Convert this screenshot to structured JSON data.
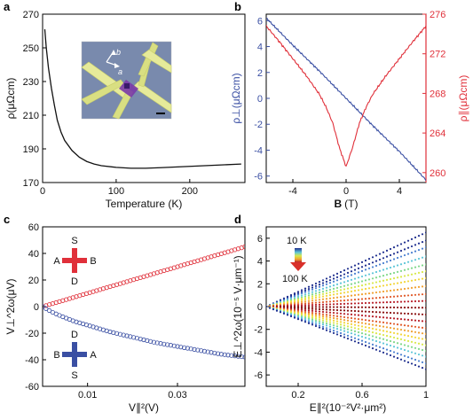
{
  "chart_data": [
    {
      "panel": "a",
      "type": "line",
      "xlabel": "Temperature (K)",
      "ylabel": "ρ(μΩcm)",
      "xlim": [
        0,
        275
      ],
      "ylim": [
        170,
        270
      ],
      "xticks": [
        0,
        100,
        200
      ],
      "yticks": [
        170,
        190,
        210,
        230,
        250,
        270
      ],
      "inset": {
        "type": "device-micrograph",
        "labels": [
          "b",
          "a"
        ]
      },
      "series": [
        {
          "color": "#111111",
          "x": [
            3,
            5,
            8,
            12,
            16,
            20,
            25,
            30,
            40,
            50,
            60,
            70,
            80,
            100,
            120,
            140,
            160,
            180,
            200,
            220,
            240,
            270
          ],
          "y": [
            261,
            250,
            238,
            226,
            216,
            207,
            200,
            195,
            189,
            185,
            182.5,
            181,
            180,
            179,
            178.5,
            178.5,
            178.8,
            179.2,
            179.6,
            180,
            180.4,
            181
          ]
        }
      ]
    },
    {
      "panel": "b",
      "type": "line",
      "xlabel_main": "B",
      "xlabel_unit": "(T)",
      "ylabel_left": "ρ⊥(μΩcm)",
      "ylabel_right": "ρ∥(μΩcm)",
      "xlim": [
        -6,
        6
      ],
      "ylim_left": [
        -6.5,
        6.5
      ],
      "ylim_right": [
        259,
        276
      ],
      "xticks": [
        -4,
        0,
        4
      ],
      "yticks_left": [
        -6,
        -4,
        -2,
        0,
        2,
        4,
        6
      ],
      "yticks_right": [
        260,
        264,
        268,
        272,
        276
      ],
      "series": [
        {
          "color": "#3a4fa3",
          "axis": "left",
          "x": [
            -6,
            -4,
            -2,
            0,
            2,
            4,
            6
          ],
          "y": [
            6.2,
            4.1,
            2.1,
            0,
            -2.1,
            -4.1,
            -6.3
          ]
        },
        {
          "color": "#e0303a",
          "axis": "right",
          "x": [
            -6,
            -5,
            -4,
            -3,
            -2,
            -1.5,
            -1,
            -0.5,
            0,
            0.5,
            1,
            1.5,
            2,
            3,
            4,
            5,
            6
          ],
          "y": [
            274.8,
            273.2,
            271.5,
            269.8,
            267.9,
            266.6,
            265,
            262.5,
            260.6,
            262.6,
            265,
            266.6,
            267.9,
            269.8,
            271.5,
            273.2,
            274.8
          ]
        }
      ]
    },
    {
      "panel": "c",
      "type": "scatter",
      "xlabel": "V∥²(V)",
      "ylabel": "V⊥^2ω(μV)",
      "xlim": [
        0,
        0.045
      ],
      "ylim": [
        -60,
        60
      ],
      "xticks": [
        0.01,
        0.03
      ],
      "yticks": [
        -60,
        -40,
        -20,
        0,
        20,
        40,
        60
      ],
      "config_top": {
        "top": "S",
        "left": "A",
        "right": "B",
        "bottom": "D"
      },
      "config_bottom": {
        "top": "D",
        "left": "B",
        "right": "A",
        "bottom": "S"
      },
      "series": [
        {
          "color": "#e0303a",
          "x": [
            0,
            0.005,
            0.01,
            0.015,
            0.02,
            0.025,
            0.03,
            0.035,
            0.04,
            0.045
          ],
          "y": [
            0,
            5,
            10,
            15,
            20,
            25,
            30,
            35,
            40,
            45
          ]
        },
        {
          "color": "#3a4fa3",
          "x": [
            0,
            0.002,
            0.004,
            0.007,
            0.01,
            0.015,
            0.02,
            0.025,
            0.03,
            0.035,
            0.04,
            0.045
          ],
          "y": [
            0,
            -4,
            -7,
            -11,
            -14,
            -19,
            -23,
            -27,
            -30,
            -33,
            -36,
            -38
          ]
        }
      ]
    },
    {
      "panel": "d",
      "type": "scatter",
      "xlabel": "E∥²(10⁻²V²·μm²)",
      "ylabel": "E⊥^2ω(10⁻⁵ V·μm⁻¹)",
      "xlim": [
        0,
        1.0
      ],
      "ylim": [
        -7,
        7
      ],
      "xticks": [
        0.2,
        0.6,
        1.0
      ],
      "yticks": [
        -6,
        -4,
        -2,
        0,
        2,
        4,
        6
      ],
      "legend": {
        "top": "10 K",
        "bottom": "100 K"
      },
      "series": [
        {
          "color": "#1f2f8f",
          "x": [
            0,
            1.0
          ],
          "y": [
            0,
            6.5
          ]
        },
        {
          "color": "#1f2f8f",
          "x": [
            0,
            1.0
          ],
          "y": [
            0,
            5.8
          ]
        },
        {
          "color": "#4a7fd0",
          "x": [
            0,
            1.0
          ],
          "y": [
            0,
            5.2
          ]
        },
        {
          "color": "#5ec6d8",
          "x": [
            0,
            1.0
          ],
          "y": [
            0,
            4.4
          ]
        },
        {
          "color": "#7fd88a",
          "x": [
            0,
            1.0
          ],
          "y": [
            0,
            3.7
          ]
        },
        {
          "color": "#d8e84a",
          "x": [
            0,
            1.0
          ],
          "y": [
            0,
            3.1
          ]
        },
        {
          "color": "#f3d63a",
          "x": [
            0,
            1.0
          ],
          "y": [
            0,
            2.5
          ]
        },
        {
          "color": "#f0a030",
          "x": [
            0,
            1.0
          ],
          "y": [
            0,
            1.8
          ]
        },
        {
          "color": "#e05a2a",
          "x": [
            0,
            1.0
          ],
          "y": [
            0,
            1.1
          ]
        },
        {
          "color": "#b8202a",
          "x": [
            0,
            1.0
          ],
          "y": [
            0,
            0.5
          ]
        },
        {
          "color": "#8a1010",
          "x": [
            0,
            1.0
          ],
          "y": [
            0,
            -0.1
          ]
        },
        {
          "color": "#8a1010",
          "x": [
            0,
            1.0
          ],
          "y": [
            0,
            -0.7
          ]
        },
        {
          "color": "#b8202a",
          "x": [
            0,
            1.0
          ],
          "y": [
            0,
            -1.3
          ]
        },
        {
          "color": "#e05a2a",
          "x": [
            0,
            1.0
          ],
          "y": [
            0,
            -1.9
          ]
        },
        {
          "color": "#f0a030",
          "x": [
            0,
            1.0
          ],
          "y": [
            0,
            -2.4
          ]
        },
        {
          "color": "#f3d63a",
          "x": [
            0,
            1.0
          ],
          "y": [
            0,
            -2.9
          ]
        },
        {
          "color": "#d8e84a",
          "x": [
            0,
            1.0
          ],
          "y": [
            0,
            -3.4
          ]
        },
        {
          "color": "#7fd88a",
          "x": [
            0,
            1.0
          ],
          "y": [
            0,
            -3.9
          ]
        },
        {
          "color": "#5ec6d8",
          "x": [
            0,
            1.0
          ],
          "y": [
            0,
            -4.4
          ]
        },
        {
          "color": "#4a7fd0",
          "x": [
            0,
            1.0
          ],
          "y": [
            0,
            -5.0
          ]
        },
        {
          "color": "#1f2f8f",
          "x": [
            0,
            1.0
          ],
          "y": [
            0,
            -5.5
          ]
        }
      ]
    }
  ]
}
